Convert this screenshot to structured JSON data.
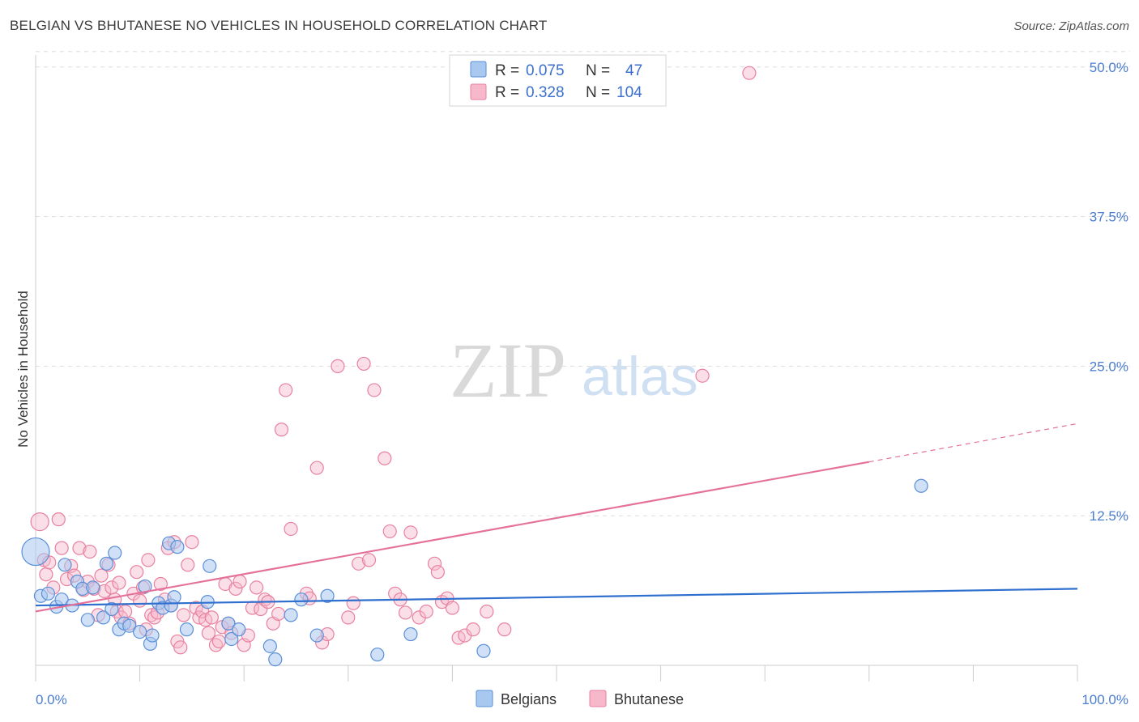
{
  "header": {
    "title": "BELGIAN VS BHUTANESE NO VEHICLES IN HOUSEHOLD CORRELATION CHART",
    "source": "Source: ZipAtlas.com"
  },
  "watermark": {
    "zip": "ZIP",
    "atlas": "atlas"
  },
  "legend": {
    "rows": [
      {
        "series": "Belgians",
        "r_label": "R =",
        "r_value": "0.075",
        "n_label": "N =",
        "n_value": "47",
        "fill": "#a9c8f0",
        "stroke": "#5b8fd8"
      },
      {
        "series": "Bhutanese",
        "r_label": "R =",
        "r_value": "0.328",
        "n_label": "N =",
        "n_value": "104",
        "fill": "#f7b8cb",
        "stroke": "#e8819f"
      }
    ]
  },
  "bottom_legend": [
    {
      "label": "Belgians",
      "fill": "#a9c8f0",
      "stroke": "#5b8fd8"
    },
    {
      "label": "Bhutanese",
      "fill": "#f7b8cb",
      "stroke": "#e8819f"
    }
  ],
  "chart_data": {
    "type": "scatter",
    "title": "BELGIAN VS BHUTANESE NO VEHICLES IN HOUSEHOLD CORRELATION CHART",
    "xlabel": "",
    "ylabel": "No Vehicles in Household",
    "xlim": [
      0,
      100
    ],
    "ylim": [
      0,
      51
    ],
    "x_tick_labels": [
      "0.0%",
      "100.0%"
    ],
    "y_ticks": [
      12.5,
      25.0,
      37.5,
      50.0
    ],
    "y_tick_labels": [
      "12.5%",
      "25.0%",
      "37.5%",
      "50.0%"
    ],
    "grid": true,
    "colors": {
      "belgians_line": "#2f6fce",
      "bhutanese_line": "#e5719a",
      "grid": "#dddddd",
      "axis": "#cccccc"
    },
    "series": [
      {
        "name": "Belgians",
        "r": 0.075,
        "n": 47,
        "trend": {
          "x0": 0,
          "y0": 5.0,
          "x1": 100,
          "y1": 6.4
        },
        "points": [
          [
            0,
            9.5
          ],
          [
            0.5,
            5.8
          ],
          [
            1.2,
            6.0
          ],
          [
            2.0,
            4.9
          ],
          [
            2.5,
            5.5
          ],
          [
            2.8,
            8.4
          ],
          [
            3.5,
            5.0
          ],
          [
            4.0,
            7.0
          ],
          [
            4.5,
            6.4
          ],
          [
            5.0,
            3.8
          ],
          [
            5.5,
            6.5
          ],
          [
            6.5,
            4.0
          ],
          [
            6.8,
            8.5
          ],
          [
            7.3,
            4.7
          ],
          [
            7.6,
            9.4
          ],
          [
            8.0,
            3.0
          ],
          [
            8.5,
            3.5
          ],
          [
            9.0,
            3.3
          ],
          [
            10.0,
            2.8
          ],
          [
            10.5,
            6.6
          ],
          [
            11.0,
            1.8
          ],
          [
            11.2,
            2.5
          ],
          [
            11.8,
            5.2
          ],
          [
            12.2,
            4.8
          ],
          [
            12.8,
            10.2
          ],
          [
            13.0,
            5.0
          ],
          [
            13.3,
            5.7
          ],
          [
            13.6,
            9.9
          ],
          [
            14.5,
            3.0
          ],
          [
            16.5,
            5.3
          ],
          [
            16.7,
            8.3
          ],
          [
            18.5,
            3.5
          ],
          [
            18.8,
            2.2
          ],
          [
            19.5,
            3.0
          ],
          [
            22.5,
            1.6
          ],
          [
            23.0,
            0.5
          ],
          [
            24.5,
            4.2
          ],
          [
            25.5,
            5.5
          ],
          [
            27.0,
            2.5
          ],
          [
            28.0,
            5.8
          ],
          [
            32.8,
            0.9
          ],
          [
            36.0,
            2.6
          ],
          [
            43.0,
            1.2
          ],
          [
            85.0,
            15.0
          ]
        ]
      },
      {
        "name": "Bhutanese",
        "r": 0.328,
        "n": 104,
        "trend": {
          "x0": 0,
          "y0": 4.5,
          "x1": 80,
          "y1": 17.0,
          "dash_x1": 100,
          "dash_y1": 20.2
        },
        "points": [
          [
            0.4,
            12.0
          ],
          [
            0.8,
            8.8
          ],
          [
            1.0,
            7.6
          ],
          [
            1.3,
            8.6
          ],
          [
            1.7,
            6.5
          ],
          [
            2.2,
            12.2
          ],
          [
            2.5,
            9.8
          ],
          [
            3.0,
            7.2
          ],
          [
            3.4,
            8.3
          ],
          [
            3.7,
            7.5
          ],
          [
            4.2,
            9.8
          ],
          [
            4.6,
            6.3
          ],
          [
            5.0,
            7.0
          ],
          [
            5.2,
            9.5
          ],
          [
            5.6,
            6.4
          ],
          [
            6.0,
            4.2
          ],
          [
            6.3,
            7.5
          ],
          [
            6.6,
            6.2
          ],
          [
            7.0,
            8.4
          ],
          [
            7.3,
            6.5
          ],
          [
            7.6,
            5.5
          ],
          [
            7.8,
            4.5
          ],
          [
            8.0,
            6.9
          ],
          [
            8.2,
            4.0
          ],
          [
            8.6,
            4.5
          ],
          [
            9.0,
            3.5
          ],
          [
            9.4,
            6.0
          ],
          [
            9.7,
            7.8
          ],
          [
            10.0,
            5.4
          ],
          [
            10.3,
            6.5
          ],
          [
            10.6,
            3.0
          ],
          [
            10.8,
            8.8
          ],
          [
            11.1,
            4.2
          ],
          [
            11.4,
            4.0
          ],
          [
            11.7,
            4.4
          ],
          [
            12.0,
            6.8
          ],
          [
            12.4,
            5.5
          ],
          [
            12.7,
            9.8
          ],
          [
            13.0,
            5.0
          ],
          [
            13.3,
            10.3
          ],
          [
            13.6,
            2.0
          ],
          [
            13.9,
            1.5
          ],
          [
            14.2,
            4.2
          ],
          [
            14.6,
            8.4
          ],
          [
            15.0,
            10.3
          ],
          [
            15.4,
            4.8
          ],
          [
            15.7,
            4.0
          ],
          [
            16.0,
            4.5
          ],
          [
            16.3,
            3.8
          ],
          [
            16.6,
            2.7
          ],
          [
            16.9,
            4.0
          ],
          [
            17.3,
            1.7
          ],
          [
            17.6,
            2.0
          ],
          [
            17.9,
            3.2
          ],
          [
            18.2,
            6.8
          ],
          [
            18.5,
            3.5
          ],
          [
            18.8,
            2.7
          ],
          [
            19.2,
            6.4
          ],
          [
            19.6,
            7.0
          ],
          [
            20.0,
            1.7
          ],
          [
            20.4,
            2.5
          ],
          [
            20.8,
            4.8
          ],
          [
            21.2,
            6.5
          ],
          [
            21.6,
            4.7
          ],
          [
            22.0,
            5.5
          ],
          [
            22.3,
            5.3
          ],
          [
            22.8,
            3.5
          ],
          [
            23.3,
            4.3
          ],
          [
            23.6,
            19.7
          ],
          [
            24.0,
            23.0
          ],
          [
            24.5,
            11.4
          ],
          [
            26.0,
            6.0
          ],
          [
            26.3,
            5.6
          ],
          [
            27.0,
            16.5
          ],
          [
            27.5,
            1.9
          ],
          [
            28.0,
            2.6
          ],
          [
            29.0,
            25.0
          ],
          [
            30.0,
            4.0
          ],
          [
            30.5,
            5.2
          ],
          [
            31.0,
            8.5
          ],
          [
            31.5,
            25.2
          ],
          [
            32.0,
            8.8
          ],
          [
            32.5,
            23.0
          ],
          [
            33.5,
            17.3
          ],
          [
            34.0,
            11.2
          ],
          [
            34.5,
            6.0
          ],
          [
            35.0,
            5.5
          ],
          [
            35.5,
            4.4
          ],
          [
            36.0,
            11.1
          ],
          [
            36.8,
            4.0
          ],
          [
            37.5,
            4.5
          ],
          [
            38.3,
            8.5
          ],
          [
            38.6,
            7.8
          ],
          [
            39.0,
            5.3
          ],
          [
            39.5,
            5.6
          ],
          [
            40.0,
            4.8
          ],
          [
            40.6,
            2.3
          ],
          [
            41.2,
            2.5
          ],
          [
            42.0,
            3.0
          ],
          [
            43.3,
            4.5
          ],
          [
            45.0,
            3.0
          ],
          [
            64.0,
            24.2
          ],
          [
            68.5,
            49.5
          ]
        ]
      }
    ]
  }
}
